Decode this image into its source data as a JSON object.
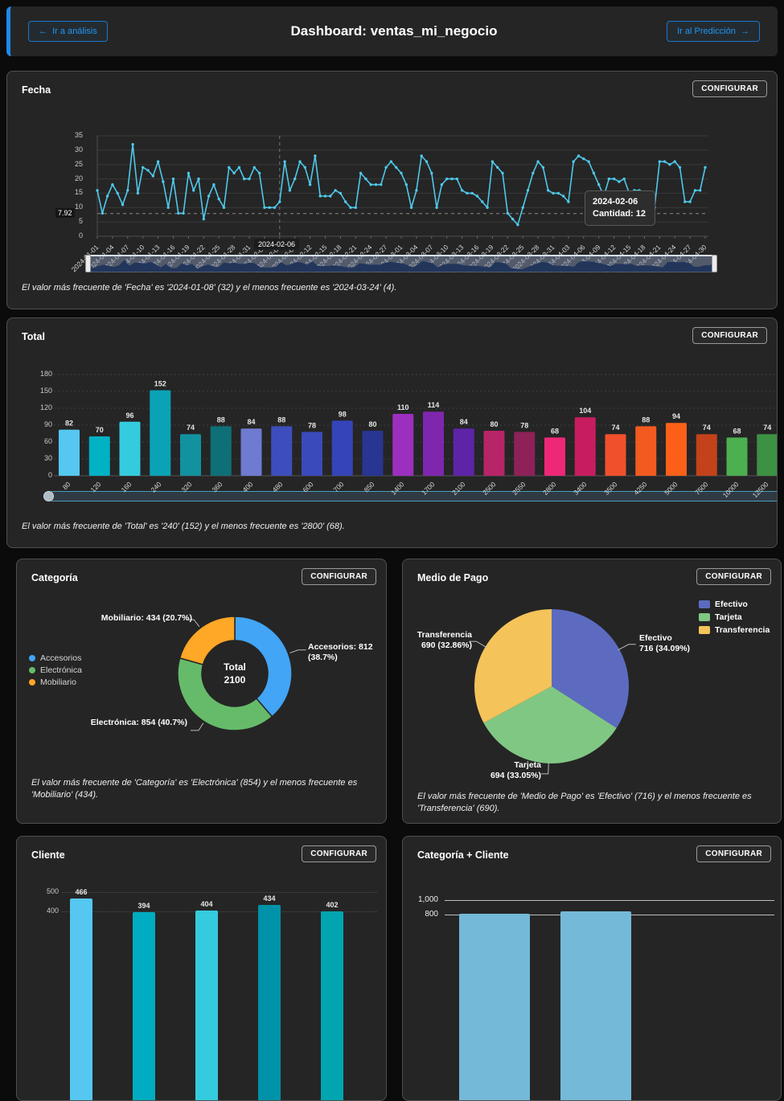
{
  "header": {
    "back_arrow": "←",
    "back_label": "Ir a análisis",
    "title": "Dashboard: ventas_mi_negocio",
    "forward_label": "Ir al Predicción",
    "forward_arrow": "→"
  },
  "common": {
    "configure_label": "CONFIGURAR"
  },
  "panels": {
    "fecha": {
      "title": "Fecha",
      "tooltip_line1": "2024-02-06",
      "tooltip_line2": "Cantidad: 12",
      "axis_highlight": "2024-02-06",
      "footer": "El valor más frecuente de 'Fecha' es '2024-01-08' (32) y el menos frecuente es '2024-03-24' (4)."
    },
    "total": {
      "title": "Total",
      "footer": "El valor más frecuente de 'Total' es '240' (152) y el menos frecuente es '2800' (68)."
    },
    "categoria": {
      "title": "Categoría",
      "center_line1": "Total",
      "center_line2": "2100",
      "label_mobiliario": "Mobiliario: 434 (20.7%)",
      "label_accesorios": "Accesorios: 812 (38.7%)",
      "label_electronica": "Electrónica: 854 (40.7%)",
      "footer": "El valor más frecuente de 'Categoría' es 'Electrónica' (854) y el menos frecuente es 'Mobiliario' (434)."
    },
    "medio_pago": {
      "title": "Medio de Pago",
      "lbl_efectivo_1": "Efectivo",
      "lbl_efectivo_2": "716 (34.09%)",
      "lbl_tarjeta_1": "Tarjeta",
      "lbl_tarjeta_2": "694 (33.05%)",
      "lbl_transferencia_1": "Transferencia",
      "lbl_transferencia_2": "690 (32.86%)",
      "footer": "El valor más frecuente de 'Medio de Pago' es 'Efectivo' (716) y el menos frecuente es 'Transferencia' (690)."
    },
    "cliente": {
      "title": "Cliente"
    },
    "categoria_cliente": {
      "title": "Categoría + Cliente"
    }
  },
  "chart_data": {
    "fecha": {
      "type": "line",
      "title": "Fecha",
      "ylabel": "Cantidad",
      "ylim": [
        0,
        35
      ],
      "yticks": [
        0,
        5,
        10,
        15,
        20,
        25,
        30,
        35
      ],
      "reference_line": 7.92,
      "reference_label": "7.92",
      "line_color": "#4FC8EA",
      "pointer_index": 36,
      "x_tick_labels": [
        "2024-01-01",
        "2024-01-04",
        "2024-01-07",
        "2024-01-10",
        "2024-01-13",
        "2024-01-16",
        "2024-01-19",
        "2024-01-22",
        "2024-01-25",
        "2024-01-28",
        "2024-01-31",
        "2024-02-03",
        "2024-02-06",
        "2024-02-09",
        "2024-02-12",
        "2024-02-15",
        "2024-02-18",
        "2024-02-21",
        "2024-02-24",
        "2024-02-27",
        "2024-03-01",
        "2024-03-04",
        "2024-03-07",
        "2024-03-10",
        "2024-03-13",
        "2024-03-16",
        "2024-03-19",
        "2024-03-22",
        "2024-03-25",
        "2024-03-28",
        "2024-03-31",
        "2024-04-03",
        "2024-04-06",
        "2024-04-09",
        "2024-04-12",
        "2024-04-15",
        "2024-04-18",
        "2024-04-21",
        "2024-04-24",
        "2024-04-27",
        "2024-04-30"
      ],
      "values": [
        16,
        8,
        14,
        18,
        15,
        11,
        16,
        32,
        15,
        24,
        23,
        21,
        26,
        19,
        10,
        20,
        8,
        8,
        22,
        16,
        20,
        6,
        14,
        18,
        13,
        10,
        24,
        22,
        24,
        20,
        20,
        24,
        22,
        10,
        10,
        10,
        12,
        26,
        16,
        20,
        26,
        24,
        18,
        28,
        14,
        14,
        14,
        16,
        15,
        12,
        10,
        10,
        22,
        20,
        18,
        18,
        18,
        24,
        26,
        24,
        22,
        18,
        10,
        16,
        28,
        26,
        22,
        10,
        18,
        20,
        20,
        20,
        16,
        15,
        15,
        14,
        12,
        10,
        26,
        24,
        22,
        8,
        6,
        4,
        10,
        16,
        22,
        26,
        24,
        16,
        15,
        15,
        14,
        12,
        26,
        28,
        27,
        26,
        22,
        18,
        14,
        20,
        20,
        19,
        20,
        15,
        16,
        16,
        15,
        13,
        10,
        26,
        26,
        25,
        26,
        24,
        12,
        12,
        16,
        16,
        24
      ]
    },
    "total": {
      "type": "bar",
      "title": "Total",
      "ylim": [
        0,
        180
      ],
      "yticks": [
        0,
        30,
        60,
        90,
        120,
        150,
        180
      ],
      "categories": [
        "80",
        "120",
        "160",
        "240",
        "320",
        "360",
        "400",
        "480",
        "600",
        "700",
        "850",
        "1400",
        "1700",
        "2100",
        "2500",
        "2550",
        "2800",
        "3400",
        "3500",
        "4250",
        "5000",
        "7500",
        "10000",
        "12500"
      ],
      "values": [
        82,
        70,
        96,
        152,
        74,
        88,
        84,
        88,
        78,
        98,
        80,
        110,
        114,
        84,
        80,
        78,
        68,
        104,
        74,
        88,
        94,
        74,
        68,
        74
      ],
      "colors": [
        "#55C7F0",
        "#00B2C4",
        "#35CBDE",
        "#0AA3B5",
        "#12929F",
        "#0E7076",
        "#6E7BD0",
        "#3D4EBC",
        "#3A4ABA",
        "#3544B8",
        "#283593",
        "#9C2FBF",
        "#7E27AE",
        "#5E24A8",
        "#B72568",
        "#8E2158",
        "#EE2877",
        "#C71D5E",
        "#F0512C",
        "#F25A1F",
        "#FC6018",
        "#C4421A",
        "#4CAF50",
        "#3C9142"
      ]
    },
    "categoria": {
      "type": "pie",
      "subtype": "donut",
      "title": "Categoría",
      "labels": [
        "Accesorios",
        "Electrónica",
        "Mobiliario"
      ],
      "values": [
        812,
        854,
        434
      ],
      "percents": [
        "38.7%",
        "40.7%",
        "20.7%"
      ],
      "colors": [
        "#42A5F5",
        "#66BB6A",
        "#FFA726"
      ],
      "total": 2100,
      "legend_position": "left"
    },
    "medio_pago": {
      "type": "pie",
      "title": "Medio de Pago",
      "labels": [
        "Efectivo",
        "Tarjeta",
        "Transferencia"
      ],
      "values": [
        716,
        694,
        690
      ],
      "percents": [
        "34.09%",
        "33.05%",
        "32.86%"
      ],
      "colors": [
        "#5C6BC0",
        "#81C784",
        "#F4C35A"
      ],
      "legend_position": "top-right"
    },
    "cliente": {
      "type": "bar",
      "title": "Cliente",
      "yticks_visible": [
        500,
        400
      ],
      "values": [
        466,
        394,
        404,
        434,
        402
      ],
      "colors": [
        "#55C7F0",
        "#00ACC1",
        "#35CBDE",
        "#0092A8",
        "#00A5B0"
      ]
    },
    "categoria_cliente": {
      "type": "bar",
      "title": "Categoría + Cliente",
      "yticks_visible": [
        "1,000",
        "800"
      ],
      "values": [
        810,
        845
      ],
      "colors": [
        "#74B9D8",
        "#74B9D8"
      ]
    }
  }
}
